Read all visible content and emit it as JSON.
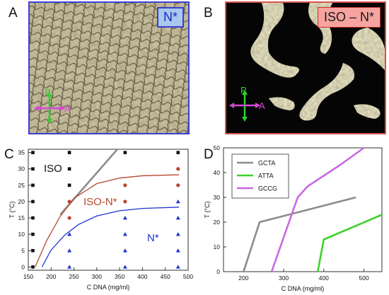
{
  "panels": {
    "a": {
      "letter": "A",
      "badge": "N*",
      "polarizer_label": "P",
      "analyzer_label": "A"
    },
    "b": {
      "letter": "B",
      "badge": "ISO – N*",
      "polarizer_label": "P",
      "analyzer_label": "A"
    },
    "c": {
      "letter": "C"
    },
    "d": {
      "letter": "D"
    }
  },
  "colors": {
    "photo_a_border": "#3b3fd6",
    "photo_b_border": "#d9534a",
    "iso": "#111111",
    "coexist": "#b5472f",
    "nematic": "#1f35d0",
    "gcta": "#8c8c8c",
    "atta": "#3ed12b",
    "gccg": "#c86ae0"
  },
  "chart_data": [
    {
      "type": "scatter",
      "id": "phase-diagram",
      "xlabel": "C DNA (mg/ml)",
      "ylabel": "T (°C)",
      "xlim": [
        150,
        500
      ],
      "ylim": [
        -1,
        36
      ],
      "xticks": [
        150,
        200,
        250,
        300,
        350,
        400,
        450,
        500
      ],
      "yticks": [
        0,
        5,
        10,
        15,
        20,
        25,
        30,
        35
      ],
      "region_labels": {
        "iso": "ISO",
        "coexist": "ISO-N*",
        "nematic": "N*"
      },
      "series": [
        {
          "phase": "iso",
          "marker": "square",
          "color": "#111111",
          "points": [
            [
              160,
              0
            ],
            [
              160,
              5
            ],
            [
              160,
              10
            ],
            [
              160,
              15
            ],
            [
              160,
              20
            ],
            [
              160,
              25
            ],
            [
              160,
              30
            ],
            [
              160,
              35
            ],
            [
              240,
              25
            ],
            [
              240,
              30
            ],
            [
              240,
              35
            ],
            [
              362,
              35
            ],
            [
              478,
              35
            ]
          ]
        },
        {
          "phase": "coexist",
          "marker": "circle",
          "color": "#b5472f",
          "points": [
            [
              240,
              15
            ],
            [
              240,
              20
            ],
            [
              362,
              20
            ],
            [
              362,
              25
            ],
            [
              478,
              25
            ],
            [
              478,
              30
            ]
          ]
        },
        {
          "phase": "nematic",
          "marker": "triangle",
          "color": "#1f35d0",
          "points": [
            [
              240,
              0
            ],
            [
              240,
              5
            ],
            [
              240,
              10
            ],
            [
              362,
              0
            ],
            [
              362,
              5
            ],
            [
              362,
              10
            ],
            [
              362,
              15
            ],
            [
              478,
              0
            ],
            [
              478,
              5
            ],
            [
              478,
              10
            ],
            [
              478,
              15
            ],
            [
              478,
              20
            ]
          ]
        }
      ],
      "curves": [
        {
          "name": "ISO/ISO-N* boundary",
          "color": "#8c8c8c",
          "x": [
            220,
            345
          ],
          "y": [
            16,
            36
          ]
        },
        {
          "name": "ISO-N* upper fit",
          "color": "#b5472f",
          "x": [
            165,
            190,
            220,
            250,
            300,
            350,
            400,
            480
          ],
          "y": [
            0,
            8,
            15.5,
            21,
            25.5,
            27.2,
            27.9,
            28.2
          ]
        },
        {
          "name": "N* lower fit",
          "color": "#1f35d0",
          "x": [
            180,
            200,
            230,
            260,
            300,
            350,
            400,
            480
          ],
          "y": [
            0,
            5.2,
            9.8,
            13,
            15.6,
            17.2,
            17.9,
            18.3
          ]
        }
      ]
    },
    {
      "type": "line",
      "id": "sequence-boundaries",
      "xlabel": "C DNA (mg/ml)",
      "ylabel": "T (°C)",
      "xlim": [
        150,
        545
      ],
      "ylim": [
        0,
        50
      ],
      "xticks": [
        200,
        300,
        400,
        500
      ],
      "yticks": [
        0,
        10,
        20,
        30,
        40,
        50
      ],
      "series": [
        {
          "name": "GCTA",
          "color": "#8c8c8c",
          "x": [
            200,
            240,
            480
          ],
          "y": [
            0,
            20,
            30
          ]
        },
        {
          "name": "ATTA",
          "color": "#3ed12b",
          "x": [
            385,
            400,
            545
          ],
          "y": [
            0,
            13,
            23
          ]
        },
        {
          "name": "GCCG",
          "color": "#c86ae0",
          "x": [
            270,
            335,
            360,
            440,
            500
          ],
          "y": [
            0,
            30,
            34.5,
            43,
            50
          ]
        }
      ]
    }
  ]
}
